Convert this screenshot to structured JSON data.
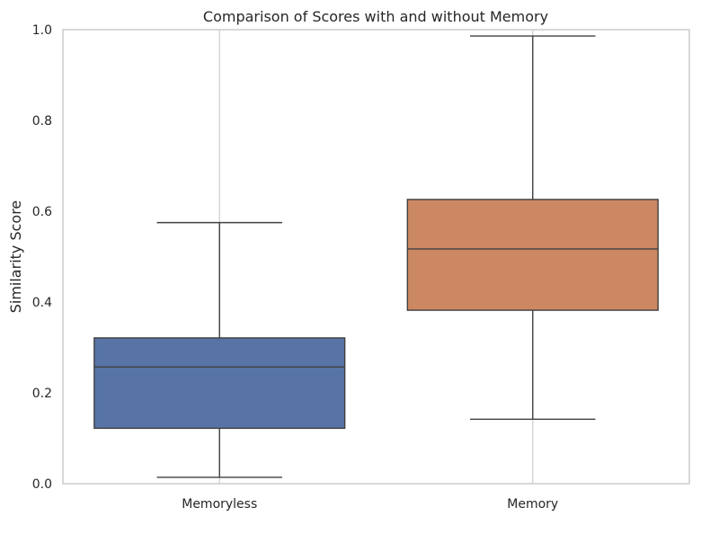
{
  "chart_data": {
    "type": "box",
    "title": "Comparison of Scores with and without Memory",
    "xlabel": "",
    "ylabel": "Similarity Score",
    "ylim": [
      0,
      1
    ],
    "yticks": [
      "0.0",
      "0.2",
      "0.4",
      "0.6",
      "0.8",
      "1.0"
    ],
    "grid": "x-only",
    "categories": [
      "Memoryless",
      "Memory"
    ],
    "boxes": [
      {
        "category": "Memoryless",
        "whisker_low": 0.014,
        "q1": 0.122,
        "median": 0.257,
        "q3": 0.321,
        "whisker_high": 0.575,
        "color": "#5874a6"
      },
      {
        "category": "Memory",
        "whisker_low": 0.142,
        "q1": 0.382,
        "median": 0.517,
        "q3": 0.626,
        "whisker_high": 0.986,
        "color": "#cb8862"
      }
    ]
  },
  "colors": {
    "box_edge": "#404040",
    "grid": "#cccccc",
    "frame": "#cccccc",
    "text": "#262626"
  }
}
